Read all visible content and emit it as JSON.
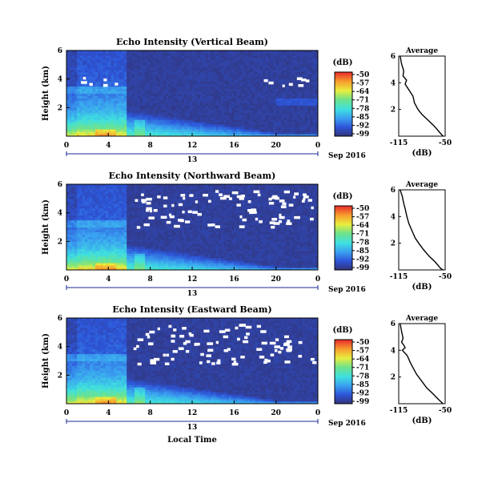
{
  "chart_data": [
    {
      "type": "heatmap",
      "title": "Echo Intensity (Vertical Beam)",
      "ylabel": "Height (km)",
      "colorbar_label": "(dB)",
      "colorbar_ticks": [
        "-50",
        "-57",
        "-64",
        "-71",
        "-78",
        "-85",
        "-92",
        "-99"
      ],
      "colorbar_range": [
        -99,
        -50
      ],
      "x_ticks": [
        "0",
        "4",
        "8",
        "12",
        "16",
        "20",
        "0"
      ],
      "y_ticks": [
        "6",
        "4",
        "2"
      ],
      "xlim": [
        0,
        24
      ],
      "ylim": [
        0,
        6
      ],
      "date_day": "13",
      "date_label": "Sep 2016",
      "clear_to_near_surface_after_hour": 6,
      "profile": {
        "title": "Average",
        "xlabel": "(dB)",
        "x_ticks": [
          "-115",
          "-50"
        ],
        "y_ticks": [
          "6",
          "4",
          "2"
        ],
        "xlim": [
          -115,
          -50
        ],
        "points": [
          [
            -113,
            6.0
          ],
          [
            -111,
            5.4
          ],
          [
            -108,
            4.9
          ],
          [
            -109,
            4.5
          ],
          [
            -104,
            4.2
          ],
          [
            -106,
            3.9
          ],
          [
            -100,
            3.4
          ],
          [
            -95,
            3.0
          ],
          [
            -93,
            2.5
          ],
          [
            -88,
            2.0
          ],
          [
            -82,
            1.6
          ],
          [
            -74,
            1.2
          ],
          [
            -66,
            0.8
          ],
          [
            -58,
            0.3
          ],
          [
            -53,
            0.0
          ]
        ]
      }
    },
    {
      "type": "heatmap",
      "title": "Echo Intensity (Northward Beam)",
      "ylabel": "Height (km)",
      "colorbar_label": "(dB)",
      "colorbar_ticks": [
        "-50",
        "-57",
        "-64",
        "-71",
        "-78",
        "-85",
        "-92",
        "-99"
      ],
      "colorbar_range": [
        -99,
        -50
      ],
      "x_ticks": [
        "0",
        "4",
        "8",
        "12",
        "16",
        "20",
        "0"
      ],
      "y_ticks": [
        "6",
        "4",
        "2"
      ],
      "xlim": [
        0,
        24
      ],
      "ylim": [
        0,
        6
      ],
      "date_day": "13",
      "date_label": "Sep 2016",
      "profile": {
        "title": "Average",
        "xlabel": "(dB)",
        "x_ticks": [
          "-115",
          "-50"
        ],
        "y_ticks": [
          "6",
          "4",
          "2"
        ],
        "xlim": [
          -115,
          -50
        ],
        "points": [
          [
            -113,
            6.0
          ],
          [
            -110,
            5.5
          ],
          [
            -108,
            5.0
          ],
          [
            -106,
            4.6
          ],
          [
            -104,
            4.1
          ],
          [
            -101,
            3.5
          ],
          [
            -97,
            3.0
          ],
          [
            -92,
            2.4
          ],
          [
            -87,
            2.0
          ],
          [
            -80,
            1.5
          ],
          [
            -72,
            1.0
          ],
          [
            -64,
            0.6
          ],
          [
            -56,
            0.1
          ],
          [
            -53,
            0.0
          ]
        ]
      }
    },
    {
      "type": "heatmap",
      "title": "Echo Intensity (Eastward Beam)",
      "ylabel": "Height (km)",
      "colorbar_label": "(dB)",
      "colorbar_ticks": [
        "-50",
        "-57",
        "-64",
        "-71",
        "-78",
        "-85",
        "-92",
        "-99"
      ],
      "colorbar_range": [
        -99,
        -50
      ],
      "x_ticks": [
        "0",
        "4",
        "8",
        "12",
        "16",
        "20",
        "0"
      ],
      "y_ticks": [
        "6",
        "4",
        "2"
      ],
      "xlim": [
        0,
        24
      ],
      "ylim": [
        0,
        6
      ],
      "date_day": "13",
      "date_label": "Sep 2016",
      "xlabel": "Local Time",
      "profile": {
        "title": "Average",
        "xlabel": "(dB)",
        "x_ticks": [
          "-115",
          "-50"
        ],
        "y_ticks": [
          "6",
          "4",
          "2"
        ],
        "xlim": [
          -115,
          -50
        ],
        "points": [
          [
            -113,
            6.0
          ],
          [
            -111,
            5.4
          ],
          [
            -109,
            4.9
          ],
          [
            -111,
            4.6
          ],
          [
            -108,
            4.4
          ],
          [
            -106,
            4.2
          ],
          [
            -110,
            4.0
          ],
          [
            -103,
            3.6
          ],
          [
            -99,
            3.1
          ],
          [
            -94,
            2.6
          ],
          [
            -90,
            2.2
          ],
          [
            -83,
            1.7
          ],
          [
            -76,
            1.2
          ],
          [
            -68,
            0.8
          ],
          [
            -59,
            0.3
          ],
          [
            -53,
            0.0
          ]
        ]
      }
    }
  ]
}
